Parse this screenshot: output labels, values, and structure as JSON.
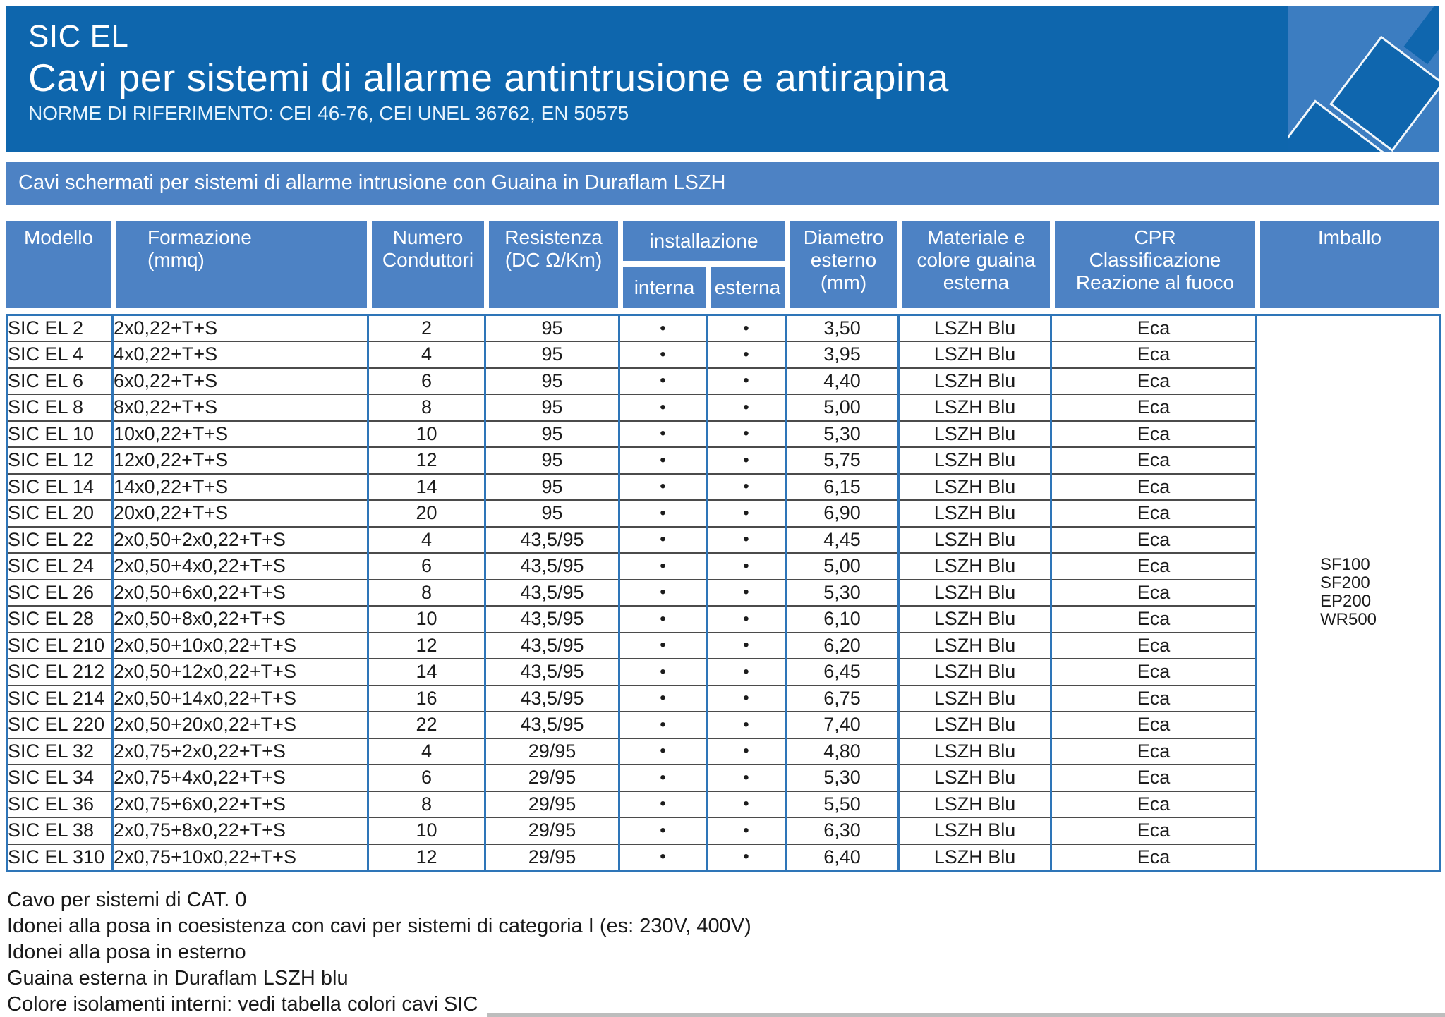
{
  "header": {
    "product": "SIC EL",
    "title": "Cavi per sistemi di allarme antintrusione e antirapina",
    "norms": "NORME DI RIFERIMENTO: CEI 46-76, CEI UNEL 36762, EN 50575"
  },
  "banner": {
    "text": "Cavi schermati per sistemi di allarme intrusione con Guaina in Duraflam LSZH"
  },
  "table": {
    "columns": {
      "modello": [
        "Modello"
      ],
      "formazione": [
        "Formazione",
        "(mmq)"
      ],
      "numero": [
        "Numero",
        "Conduttori"
      ],
      "resistenza": [
        "Resistenza",
        "(DC Ω/Km)"
      ],
      "installazione": "installazione",
      "interna": "interna",
      "esterna": "esterna",
      "diametro": [
        "Diametro",
        "esterno",
        "(mm)"
      ],
      "materiale": [
        "Materiale e",
        "colore guaina",
        "esterna"
      ],
      "cpr": [
        "CPR",
        "Classificazione",
        "Reazione al fuoco"
      ],
      "imballo": [
        "Imballo"
      ]
    },
    "rows": [
      {
        "model": "SIC EL 2",
        "formation": "2x0,22+T+S",
        "conductors": "2",
        "resistance": "95",
        "interna": "•",
        "esterna": "•",
        "diameter": "3,50",
        "sheath": "LSZH Blu",
        "cpr": "Eca"
      },
      {
        "model": "SIC EL 4",
        "formation": "4x0,22+T+S",
        "conductors": "4",
        "resistance": "95",
        "interna": "•",
        "esterna": "•",
        "diameter": "3,95",
        "sheath": "LSZH Blu",
        "cpr": "Eca"
      },
      {
        "model": "SIC EL 6",
        "formation": "6x0,22+T+S",
        "conductors": "6",
        "resistance": "95",
        "interna": "•",
        "esterna": "•",
        "diameter": "4,40",
        "sheath": "LSZH Blu",
        "cpr": "Eca"
      },
      {
        "model": "SIC EL 8",
        "formation": "8x0,22+T+S",
        "conductors": "8",
        "resistance": "95",
        "interna": "•",
        "esterna": "•",
        "diameter": "5,00",
        "sheath": "LSZH Blu",
        "cpr": "Eca"
      },
      {
        "model": "SIC EL 10",
        "formation": "10x0,22+T+S",
        "conductors": "10",
        "resistance": "95",
        "interna": "•",
        "esterna": "•",
        "diameter": "5,30",
        "sheath": "LSZH Blu",
        "cpr": "Eca"
      },
      {
        "model": "SIC EL 12",
        "formation": "12x0,22+T+S",
        "conductors": "12",
        "resistance": "95",
        "interna": "•",
        "esterna": "•",
        "diameter": "5,75",
        "sheath": "LSZH Blu",
        "cpr": "Eca"
      },
      {
        "model": "SIC EL 14",
        "formation": "14x0,22+T+S",
        "conductors": "14",
        "resistance": "95",
        "interna": "•",
        "esterna": "•",
        "diameter": "6,15",
        "sheath": "LSZH Blu",
        "cpr": "Eca"
      },
      {
        "model": "SIC EL 20",
        "formation": "20x0,22+T+S",
        "conductors": "20",
        "resistance": "95",
        "interna": "•",
        "esterna": "•",
        "diameter": "6,90",
        "sheath": "LSZH Blu",
        "cpr": "Eca"
      },
      {
        "model": "SIC EL 22",
        "formation": "2x0,50+2x0,22+T+S",
        "conductors": "4",
        "resistance": "43,5/95",
        "interna": "•",
        "esterna": "•",
        "diameter": "4,45",
        "sheath": "LSZH Blu",
        "cpr": "Eca"
      },
      {
        "model": "SIC EL 24",
        "formation": "2x0,50+4x0,22+T+S",
        "conductors": "6",
        "resistance": "43,5/95",
        "interna": "•",
        "esterna": "•",
        "diameter": "5,00",
        "sheath": "LSZH Blu",
        "cpr": "Eca"
      },
      {
        "model": "SIC EL 26",
        "formation": "2x0,50+6x0,22+T+S",
        "conductors": "8",
        "resistance": "43,5/95",
        "interna": "•",
        "esterna": "•",
        "diameter": "5,30",
        "sheath": "LSZH Blu",
        "cpr": "Eca"
      },
      {
        "model": "SIC EL 28",
        "formation": "2x0,50+8x0,22+T+S",
        "conductors": "10",
        "resistance": "43,5/95",
        "interna": "•",
        "esterna": "•",
        "diameter": "6,10",
        "sheath": "LSZH Blu",
        "cpr": "Eca"
      },
      {
        "model": "SIC EL 210",
        "formation": "2x0,50+10x0,22+T+S",
        "conductors": "12",
        "resistance": "43,5/95",
        "interna": "•",
        "esterna": "•",
        "diameter": "6,20",
        "sheath": "LSZH Blu",
        "cpr": "Eca"
      },
      {
        "model": "SIC EL 212",
        "formation": "2x0,50+12x0,22+T+S",
        "conductors": "14",
        "resistance": "43,5/95",
        "interna": "•",
        "esterna": "•",
        "diameter": "6,45",
        "sheath": "LSZH Blu",
        "cpr": "Eca"
      },
      {
        "model": "SIC EL 214",
        "formation": "2x0,50+14x0,22+T+S",
        "conductors": "16",
        "resistance": "43,5/95",
        "interna": "•",
        "esterna": "•",
        "diameter": "6,75",
        "sheath": "LSZH Blu",
        "cpr": "Eca"
      },
      {
        "model": "SIC EL 220",
        "formation": "2x0,50+20x0,22+T+S",
        "conductors": "22",
        "resistance": "43,5/95",
        "interna": "•",
        "esterna": "•",
        "diameter": "7,40",
        "sheath": "LSZH Blu",
        "cpr": "Eca"
      },
      {
        "model": "SIC EL 32",
        "formation": "2x0,75+2x0,22+T+S",
        "conductors": "4",
        "resistance": "29/95",
        "interna": "•",
        "esterna": "•",
        "diameter": "4,80",
        "sheath": "LSZH Blu",
        "cpr": "Eca"
      },
      {
        "model": "SIC EL 34",
        "formation": "2x0,75+4x0,22+T+S",
        "conductors": "6",
        "resistance": "29/95",
        "interna": "•",
        "esterna": "•",
        "diameter": "5,30",
        "sheath": "LSZH Blu",
        "cpr": "Eca"
      },
      {
        "model": "SIC EL 36",
        "formation": "2x0,75+6x0,22+T+S",
        "conductors": "8",
        "resistance": "29/95",
        "interna": "•",
        "esterna": "•",
        "diameter": "5,50",
        "sheath": "LSZH Blu",
        "cpr": "Eca"
      },
      {
        "model": "SIC EL 38",
        "formation": "2x0,75+8x0,22+T+S",
        "conductors": "10",
        "resistance": "29/95",
        "interna": "•",
        "esterna": "•",
        "diameter": "6,30",
        "sheath": "LSZH Blu",
        "cpr": "Eca"
      },
      {
        "model": "SIC EL 310",
        "formation": "2x0,75+10x0,22+T+S",
        "conductors": "12",
        "resistance": "29/95",
        "interna": "•",
        "esterna": "•",
        "diameter": "6,40",
        "sheath": "LSZH Blu",
        "cpr": "Eca"
      }
    ],
    "imballo": [
      "SF100",
      "SF200",
      "EP200",
      "WR500"
    ]
  },
  "notes": [
    "Cavo per sistemi di CAT. 0",
    "Idonei alla posa in coesistenza con cavi per sistemi di categoria I (es: 230V, 400V)",
    "Idonei alla posa in esterno",
    "Guaina esterna in Duraflam LSZH blu",
    "Colore isolamenti interni: vedi tabella colori cavi SIC"
  ],
  "colors": {
    "header_blue": "#0e66ad",
    "band_blue": "#4d82c4",
    "corner_blue": "#3c7dc1",
    "table_line_blue": "#2e75b8",
    "row_line_gray": "#4b4b4b"
  }
}
